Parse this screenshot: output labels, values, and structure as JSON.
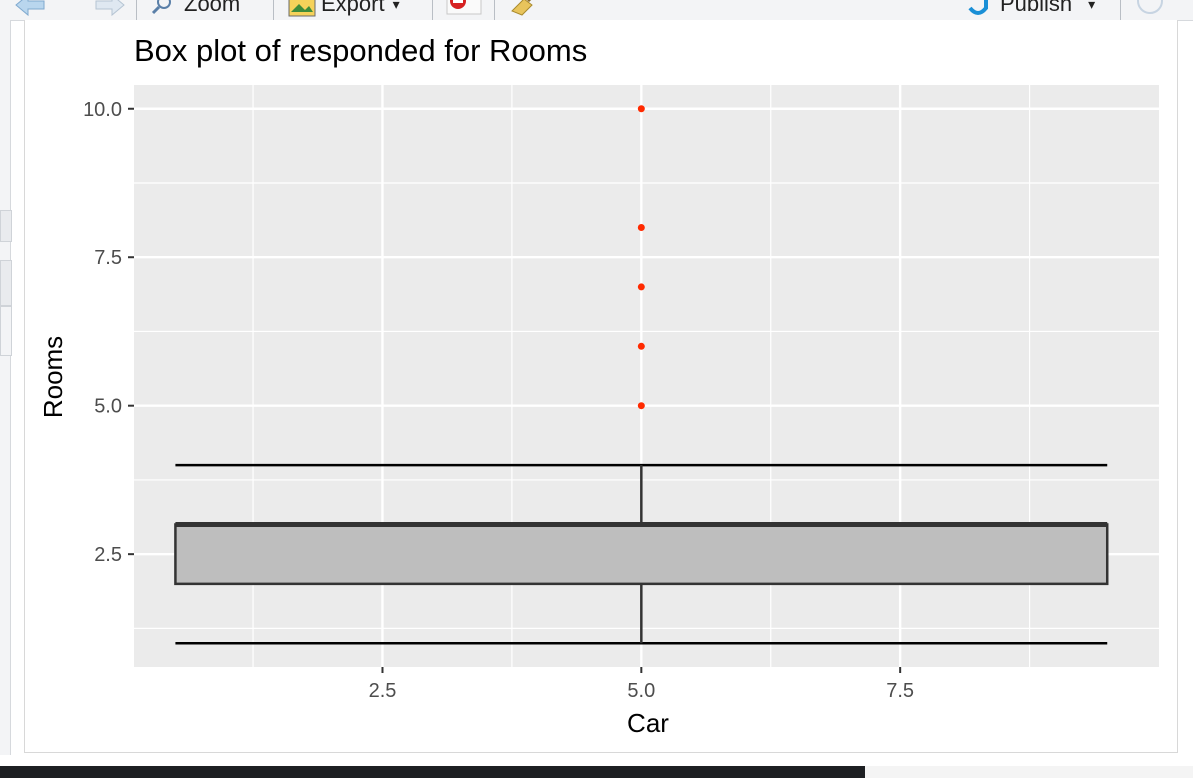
{
  "toolbar": {
    "zoom_label": "Zoom",
    "export_label": "Export",
    "publish_label": "Publish"
  },
  "chart_data": {
    "type": "boxplot",
    "title": "Box plot of responded for Rooms",
    "xlabel": "Car",
    "ylabel": "Rooms",
    "xlim": [
      0.1,
      10.0
    ],
    "ylim": [
      0.6,
      10.4
    ],
    "x_ticks": [
      2.5,
      5.0,
      7.5
    ],
    "x_tick_labels": [
      "2.5",
      "5.0",
      "7.5"
    ],
    "y_ticks": [
      2.5,
      5.0,
      7.5,
      10.0
    ],
    "y_tick_labels": [
      "2.5",
      "5.0",
      "7.5",
      "10.0"
    ],
    "grid": true,
    "box": {
      "x_center": 5.0,
      "x_extent": [
        0.5,
        9.5
      ],
      "whisker_low": 1,
      "q1": 2,
      "median": 3,
      "q3": 3,
      "whisker_high": 4,
      "fill": "#bebebe"
    },
    "outliers": [
      5,
      6,
      7,
      8,
      10
    ],
    "outlier_color": "#ff2a00",
    "panel_background": "#ebebeb"
  }
}
